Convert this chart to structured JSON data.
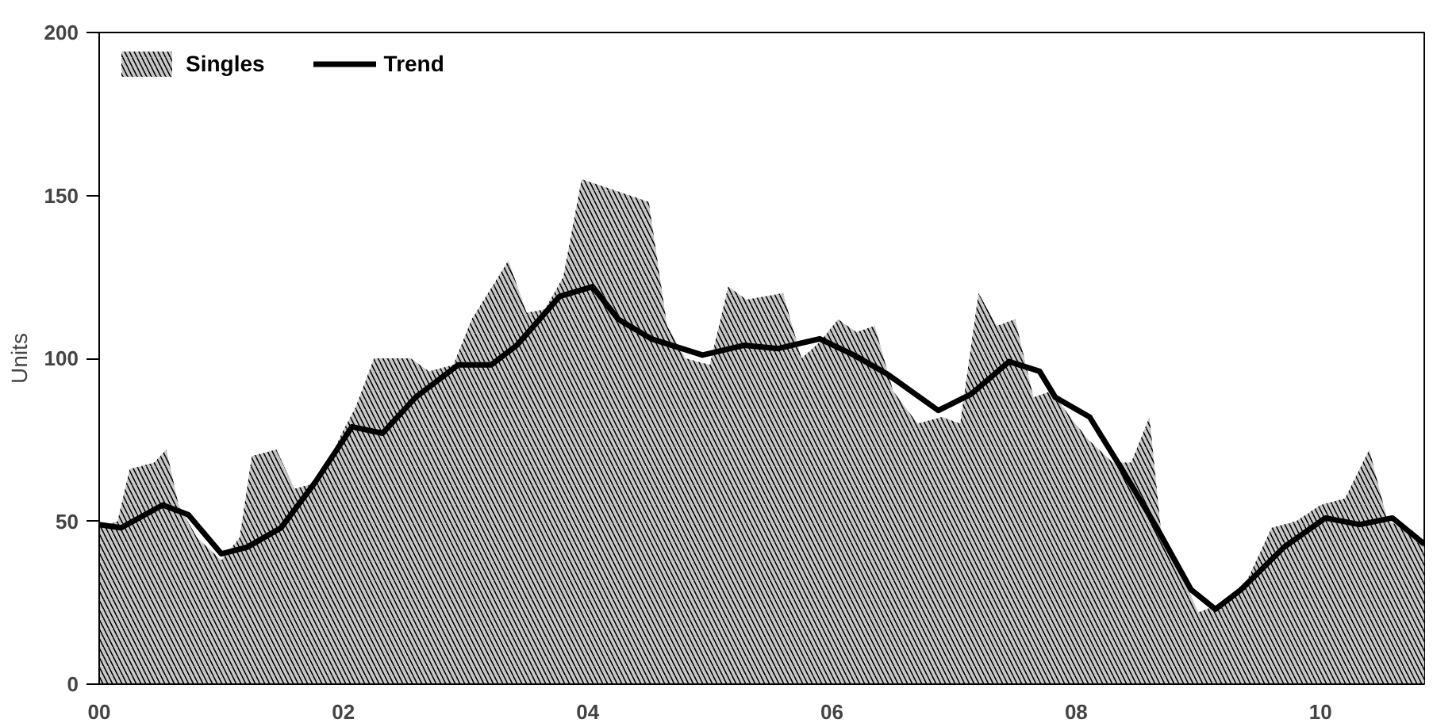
{
  "chart_data": {
    "type": "area",
    "ylabel": "Units",
    "xlim": [
      0,
      10.85
    ],
    "ylim": [
      0,
      200
    ],
    "xticks": [
      {
        "value": 0,
        "label": "00"
      },
      {
        "value": 2,
        "label": "02"
      },
      {
        "value": 4,
        "label": "04"
      },
      {
        "value": 6,
        "label": "06"
      },
      {
        "value": 8,
        "label": "08"
      },
      {
        "value": 10,
        "label": "10"
      }
    ],
    "yticks": [
      0,
      50,
      100,
      150,
      200
    ],
    "grid": false,
    "legend": "top left",
    "series": [
      {
        "name": "Singles",
        "color": "#c8c8c8",
        "x": [
          0,
          0.15,
          0.25,
          0.45,
          0.55,
          0.65,
          0.8,
          1.0,
          1.15,
          1.25,
          1.45,
          1.6,
          1.8,
          2.0,
          2.1,
          2.25,
          2.55,
          2.7,
          2.9,
          3.05,
          3.35,
          3.5,
          3.65,
          3.8,
          3.95,
          4.5,
          4.65,
          4.8,
          5.0,
          5.15,
          5.3,
          5.6,
          5.75,
          5.9,
          6.05,
          6.2,
          6.35,
          6.5,
          6.7,
          6.9,
          7.05,
          7.2,
          7.35,
          7.5,
          7.65,
          7.8,
          7.95,
          8.1,
          8.3,
          8.45,
          8.6,
          8.7,
          8.85,
          9.0,
          9.2,
          9.4,
          9.6,
          9.8,
          10.0,
          10.2,
          10.4,
          10.55,
          10.7,
          10.85
        ],
        "values": [
          48,
          50,
          66,
          68,
          72,
          55,
          45,
          38,
          45,
          70,
          72,
          60,
          62,
          78,
          85,
          100,
          100,
          96,
          98,
          112,
          130,
          114,
          115,
          125,
          155,
          148,
          110,
          100,
          98,
          122,
          118,
          120,
          100,
          105,
          112,
          108,
          110,
          90,
          80,
          82,
          80,
          120,
          110,
          112,
          88,
          90,
          82,
          75,
          68,
          68,
          82,
          45,
          35,
          22,
          25,
          32,
          48,
          50,
          55,
          57,
          72,
          50,
          48,
          44
        ]
      },
      {
        "name": "Trend",
        "type": "line",
        "color": "#000000",
        "x": [
          0,
          0.18,
          0.52,
          0.73,
          1.0,
          1.21,
          1.49,
          1.77,
          2.07,
          2.32,
          2.59,
          2.94,
          3.21,
          3.42,
          3.77,
          4.04,
          4.25,
          4.52,
          4.94,
          5.28,
          5.56,
          5.9,
          6.18,
          6.46,
          6.87,
          7.14,
          7.45,
          7.7,
          7.83,
          8.11,
          8.39,
          8.66,
          8.94,
          9.14,
          9.35,
          9.7,
          10.04,
          10.32,
          10.59,
          10.85
        ],
        "values": [
          49,
          48,
          55,
          52,
          40,
          42,
          48,
          62,
          79,
          77,
          88,
          98,
          98,
          104,
          119,
          122,
          112,
          106,
          101,
          104,
          103,
          106,
          101,
          95,
          84,
          89,
          99,
          96,
          88,
          82,
          65,
          48,
          29,
          23,
          29,
          42,
          51,
          49,
          51,
          43
        ]
      }
    ]
  }
}
